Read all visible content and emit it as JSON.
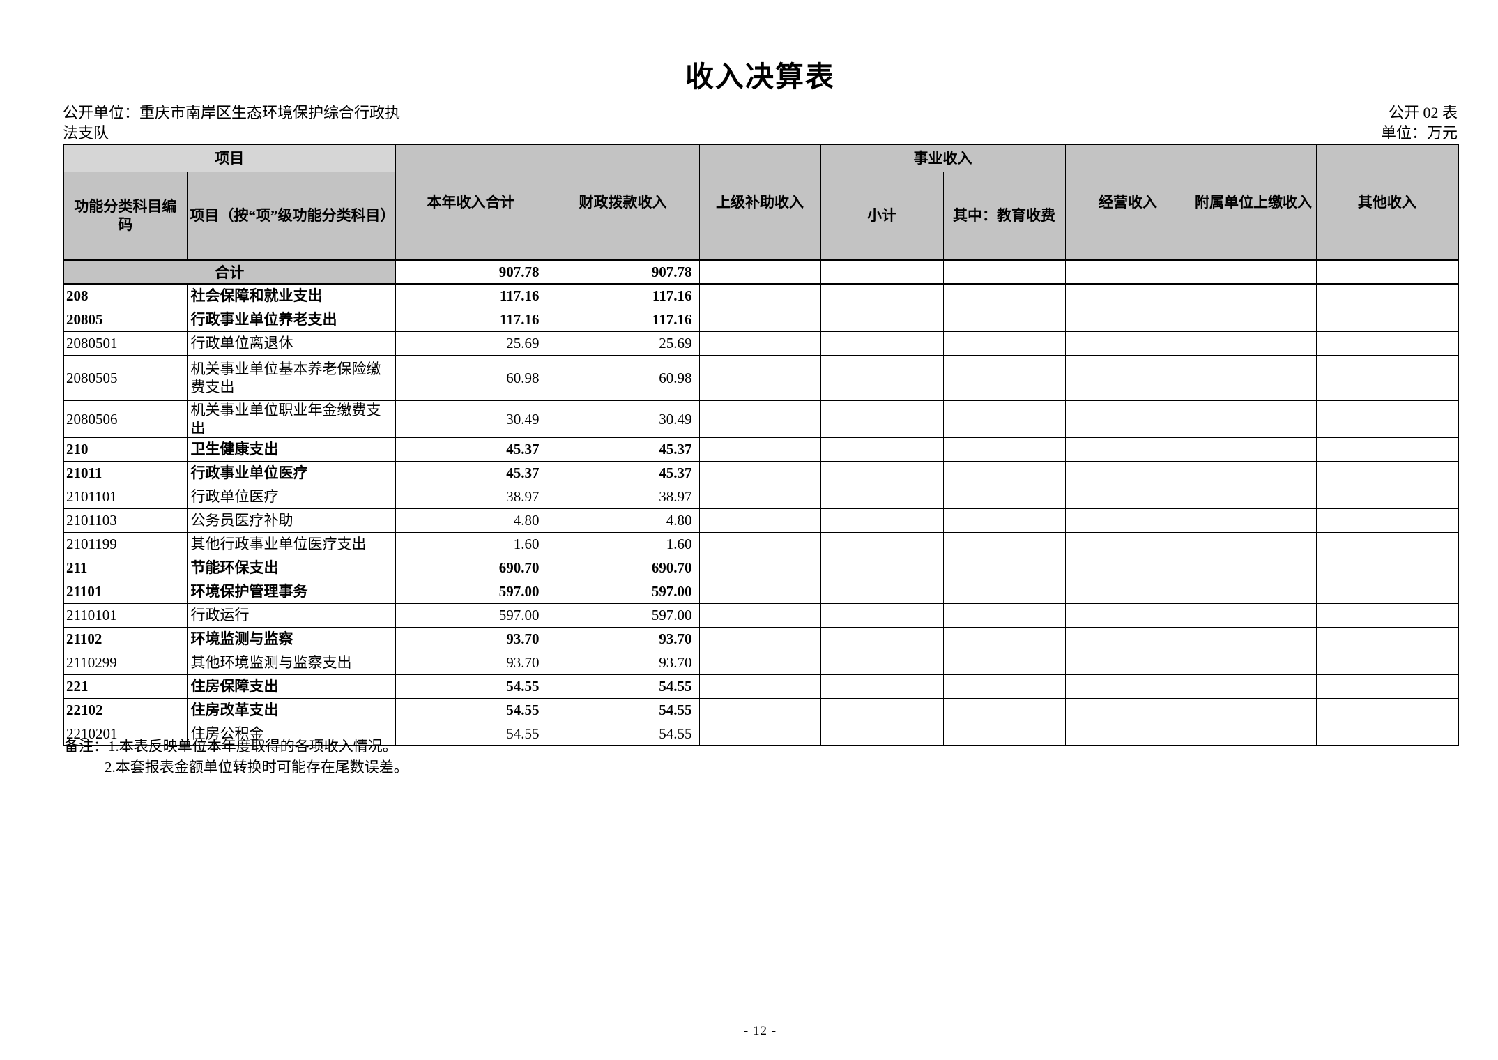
{
  "page": {
    "title": "收入决算表",
    "publisher": "公开单位：重庆市南岸区生态环境保护综合行政执法支队",
    "doc_code": "公开 02 表",
    "unit_label": "单位：万元",
    "notes": [
      "备注：1.本表反映单位本年度取得的各项收入情况。",
      "2.本套报表金额单位转换时可能存在尾数误差。"
    ],
    "page_number": "- 12 -"
  },
  "colors": {
    "header_fill": "#c3c3c3",
    "header_fill_light": "#d6d6d6",
    "border": "#000000"
  },
  "table": {
    "headers": {
      "project_group": "项目",
      "func_code": "功能分类科目编码",
      "project_item": "项目（按“项”级功能分类科目）",
      "year_total": "本年收入合计",
      "fiscal": "财政拨款收入",
      "superior": "上级补助收入",
      "business_group": "事业收入",
      "subtotal": "小计",
      "education": "其中：教育收费",
      "operating": "经营收入",
      "affiliated": "附属单位上缴收入",
      "other": "其他收入"
    },
    "total_row": {
      "label": "合计",
      "year_total": "907.78",
      "fiscal": "907.78",
      "superior": "",
      "subtotal": "",
      "education": "",
      "operating": "",
      "affiliated": "",
      "other": ""
    },
    "rows": [
      {
        "code": "208",
        "name": "社会保障和就业支出",
        "year_total": "117.16",
        "fiscal": "117.16",
        "bold": true,
        "tall": false
      },
      {
        "code": "20805",
        "name": "行政事业单位养老支出",
        "year_total": "117.16",
        "fiscal": "117.16",
        "bold": true,
        "tall": false
      },
      {
        "code": "2080501",
        "name": "行政单位离退休",
        "year_total": "25.69",
        "fiscal": "25.69",
        "bold": false,
        "tall": false
      },
      {
        "code": "2080505",
        "name": "机关事业单位基本养老保险缴费支出",
        "year_total": "60.98",
        "fiscal": "60.98",
        "bold": false,
        "tall": true
      },
      {
        "code": "2080506",
        "name": "机关事业单位职业年金缴费支出",
        "year_total": "30.49",
        "fiscal": "30.49",
        "bold": false,
        "tall": false
      },
      {
        "code": "210",
        "name": "卫生健康支出",
        "year_total": "45.37",
        "fiscal": "45.37",
        "bold": true,
        "tall": false
      },
      {
        "code": "21011",
        "name": "行政事业单位医疗",
        "year_total": "45.37",
        "fiscal": "45.37",
        "bold": true,
        "tall": false
      },
      {
        "code": "2101101",
        "name": "行政单位医疗",
        "year_total": "38.97",
        "fiscal": "38.97",
        "bold": false,
        "tall": false
      },
      {
        "code": "2101103",
        "name": "公务员医疗补助",
        "year_total": "4.80",
        "fiscal": "4.80",
        "bold": false,
        "tall": false
      },
      {
        "code": "2101199",
        "name": "其他行政事业单位医疗支出",
        "year_total": "1.60",
        "fiscal": "1.60",
        "bold": false,
        "tall": false
      },
      {
        "code": "211",
        "name": "节能环保支出",
        "year_total": "690.70",
        "fiscal": "690.70",
        "bold": true,
        "tall": false
      },
      {
        "code": "21101",
        "name": "环境保护管理事务",
        "year_total": "597.00",
        "fiscal": "597.00",
        "bold": true,
        "tall": false
      },
      {
        "code": "2110101",
        "name": "行政运行",
        "year_total": "597.00",
        "fiscal": "597.00",
        "bold": false,
        "tall": false
      },
      {
        "code": "21102",
        "name": "环境监测与监察",
        "year_total": "93.70",
        "fiscal": "93.70",
        "bold": true,
        "tall": false
      },
      {
        "code": "2110299",
        "name": "其他环境监测与监察支出",
        "year_total": "93.70",
        "fiscal": "93.70",
        "bold": false,
        "tall": false
      },
      {
        "code": "221",
        "name": "住房保障支出",
        "year_total": "54.55",
        "fiscal": "54.55",
        "bold": true,
        "tall": false
      },
      {
        "code": "22102",
        "name": "住房改革支出",
        "year_total": "54.55",
        "fiscal": "54.55",
        "bold": true,
        "tall": false
      },
      {
        "code": "2210201",
        "name": "住房公积金",
        "year_total": "54.55",
        "fiscal": "54.55",
        "bold": false,
        "tall": false
      }
    ],
    "empty_value_columns": [
      "superior",
      "subtotal",
      "education",
      "operating",
      "affiliated",
      "other"
    ]
  }
}
